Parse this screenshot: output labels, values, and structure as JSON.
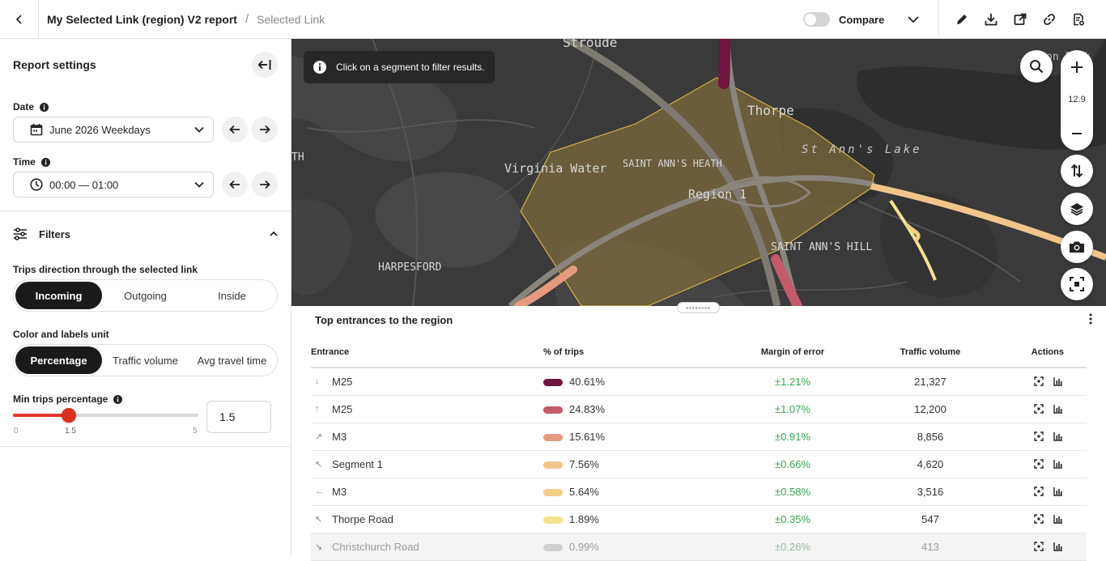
{
  "header": {
    "title": "My Selected Link (region) V2 report",
    "separator": "/",
    "breadcrumb": "Selected Link",
    "compare_label": "Compare",
    "compare_enabled": false
  },
  "sidebar": {
    "title": "Report settings",
    "date": {
      "label": "Date",
      "value": "June 2026 Weekdays"
    },
    "time": {
      "label": "Time",
      "value": "00:00 — 01:00"
    },
    "filters": {
      "title": "Filters",
      "direction": {
        "label": "Trips direction through the selected link",
        "options": [
          "Incoming",
          "Outgoing",
          "Inside"
        ],
        "selected": "Incoming"
      },
      "unit": {
        "label": "Color and labels unit",
        "options": [
          "Percentage",
          "Traffic volume",
          "Avg travel time"
        ],
        "selected": "Percentage"
      },
      "min_trips": {
        "label": "Min trips percentage",
        "value": "1.5",
        "min": "0",
        "max": "5",
        "current": "1.5",
        "fraction": 0.3
      }
    }
  },
  "map": {
    "info": "Click on a segment to filter results.",
    "zoom": "12.9",
    "labels": {
      "stroude": "Stroude",
      "thorpe": "Thorpe",
      "st_anns_lake": "St Ann's Lake",
      "virginia_water": "Virginia Water",
      "saint_anns_heath": "SAINT ANN'S HEATH",
      "region": "Region 1",
      "saint_anns_hill": "SAINT ANN'S HILL",
      "harpesford": "HARPESFORD",
      "th": "TH",
      "corner": "on Park"
    }
  },
  "table": {
    "title": "Top entrances to the region",
    "columns": [
      "Entrance",
      "% of trips",
      "Margin of error",
      "Traffic volume",
      "Actions"
    ],
    "rows": [
      {
        "dir": "↓",
        "entrance": "M25",
        "pct": "40.61%",
        "moe": "±1.21%",
        "volume": "21,327",
        "color": "#6e1640"
      },
      {
        "dir": "↑",
        "entrance": "M25",
        "pct": "24.83%",
        "moe": "±1.07%",
        "volume": "12,200",
        "color": "#c45a6b"
      },
      {
        "dir": "↗",
        "entrance": "M3",
        "pct": "15.61%",
        "moe": "±0.91%",
        "volume": "8,856",
        "color": "#e79a80"
      },
      {
        "dir": "↖",
        "entrance": "Segment 1",
        "pct": "7.56%",
        "moe": "±0.66%",
        "volume": "4,620",
        "color": "#f1c58a"
      },
      {
        "dir": "←",
        "entrance": "M3",
        "pct": "5.64%",
        "moe": "±0.58%",
        "volume": "3,516",
        "color": "#f1cf86"
      },
      {
        "dir": "↖",
        "entrance": "Thorpe Road",
        "pct": "1.89%",
        "moe": "±0.35%",
        "volume": "547",
        "color": "#f3e38f"
      },
      {
        "dir": "↘",
        "entrance": "Christchurch Road",
        "pct": "0.99%",
        "moe": "±0.26%",
        "volume": "413",
        "color": "#cfcfcf"
      }
    ]
  }
}
